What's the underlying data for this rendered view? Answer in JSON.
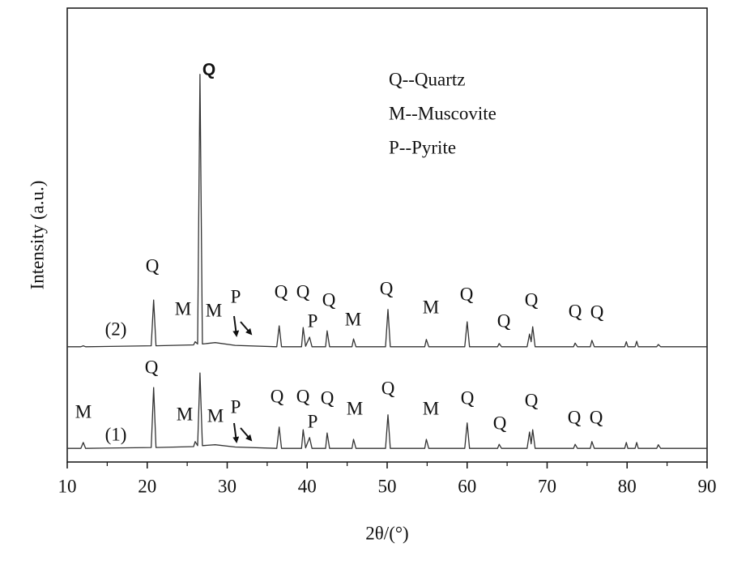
{
  "chart_data": {
    "type": "line",
    "xlabel": "2θ/(°)",
    "ylabel": "Intensity (a.u.)",
    "xlim": [
      10,
      90
    ],
    "xticks": [
      10,
      20,
      30,
      40,
      50,
      60,
      70,
      80,
      90
    ],
    "x_minor_ticks": [
      15,
      25,
      35,
      45,
      55,
      65,
      75,
      85
    ],
    "ylim": [
      0,
      100
    ],
    "x": [
      10,
      11.7,
      12.0,
      12.3,
      20.5,
      20.8,
      21.1,
      25.8,
      26.0,
      26.3,
      26.6,
      26.9,
      28.5,
      31.0,
      36.2,
      36.5,
      36.8,
      39.3,
      39.5,
      39.8,
      40.3,
      40.6,
      42.3,
      42.5,
      42.8,
      45.6,
      45.8,
      46.1,
      49.8,
      50.1,
      50.4,
      54.7,
      54.9,
      55.2,
      59.7,
      60.0,
      60.3,
      63.8,
      64.0,
      64.3,
      67.5,
      67.8,
      68.0,
      68.2,
      68.5,
      73.3,
      73.5,
      73.8,
      75.4,
      75.6,
      75.9,
      79.7,
      79.9,
      80.1,
      81.0,
      81.2,
      81.4,
      83.7,
      83.9,
      84.2,
      90
    ],
    "series": [
      {
        "name": "(1)",
        "color": "#333333",
        "values": [
          3.0,
          3.0,
          4.3,
          3.0,
          3.2,
          16.4,
          3.2,
          3.4,
          4.5,
          3.6,
          19.6,
          3.6,
          3.8,
          3.3,
          3.0,
          7.7,
          3.0,
          3.0,
          7.1,
          3.1,
          5.4,
          3.0,
          3.0,
          6.4,
          3.0,
          3.0,
          5.0,
          3.0,
          3.0,
          10.4,
          3.0,
          3.0,
          5.0,
          3.0,
          3.0,
          8.6,
          3.0,
          3.0,
          3.9,
          3.0,
          3.0,
          6.6,
          4.0,
          7.1,
          3.0,
          3.0,
          3.9,
          3.0,
          3.0,
          4.5,
          3.0,
          3.0,
          4.3,
          3.0,
          3.0,
          4.3,
          3.0,
          3.0,
          3.8,
          3.0,
          3.0
        ]
      },
      {
        "name": "(2)",
        "color": "#333333",
        "values": [
          25.4,
          25.4,
          25.6,
          25.4,
          25.6,
          35.7,
          25.6,
          25.8,
          26.5,
          26.0,
          85.4,
          26.0,
          26.3,
          25.7,
          25.4,
          30.0,
          25.4,
          25.4,
          29.6,
          25.5,
          27.5,
          25.4,
          25.4,
          28.9,
          25.4,
          25.4,
          27.1,
          25.4,
          25.4,
          33.6,
          25.4,
          25.4,
          27.0,
          25.4,
          25.4,
          30.9,
          25.4,
          25.4,
          26.1,
          25.4,
          25.4,
          28.2,
          26.5,
          29.8,
          25.4,
          25.4,
          26.2,
          25.4,
          25.4,
          26.8,
          25.4,
          25.4,
          26.5,
          25.4,
          25.4,
          26.6,
          25.4,
          25.4,
          25.9,
          25.4,
          25.4
        ]
      }
    ],
    "legend_text": [
      "Q--Quartz",
      "M--Muscovite",
      "P--Pyrite"
    ],
    "annotations": [
      "Q",
      "Q",
      "M",
      "M",
      "P",
      "Q",
      "Q",
      "Q",
      "P",
      "M",
      "Q",
      "M",
      "Q",
      "Q",
      "Q",
      "Q",
      "Q",
      "M",
      "Q",
      "M",
      "M",
      "P",
      "Q",
      "Q",
      "Q",
      "P",
      "M",
      "Q",
      "M",
      "Q",
      "Q",
      "Q",
      "Q",
      "Q"
    ]
  }
}
